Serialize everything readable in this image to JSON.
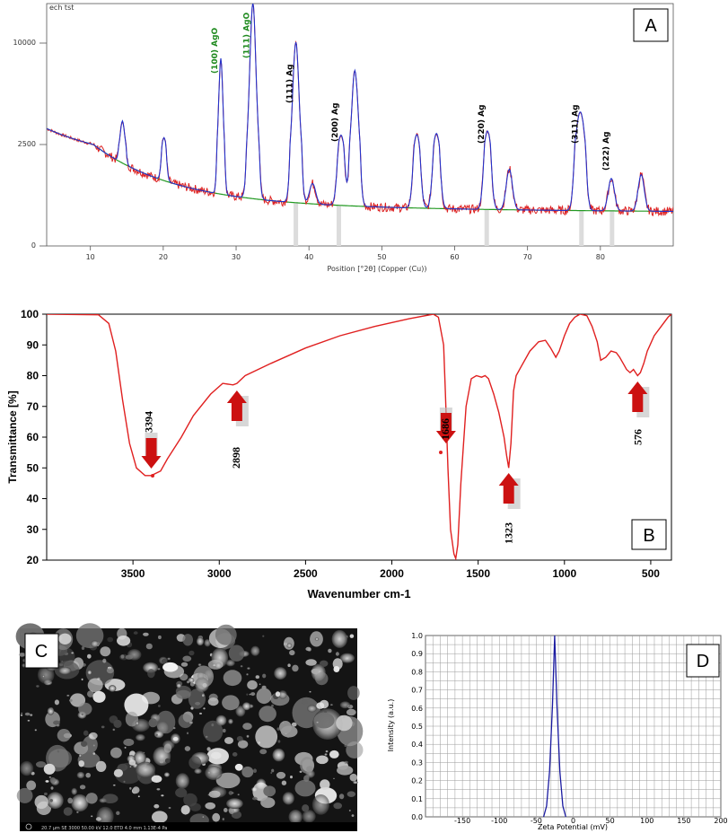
{
  "colors": {
    "xrd_fit": "#2233cc",
    "xrd_raw": "#dd2222",
    "xrd_background": "#229922",
    "ftir_line": "#e02020",
    "arrow": "#cc1111",
    "zeta_line": "#1a1aa0",
    "grid": "#999999"
  },
  "chart_data": [
    {
      "panel": "A",
      "type": "line",
      "header": "ech tst",
      "xlabel": "Position [°2θ] (Copper (Cu))",
      "ylabel": "",
      "xlim": [
        4,
        90
      ],
      "ylim": [
        0,
        12000
      ],
      "xticks": [
        10,
        20,
        30,
        40,
        50,
        60,
        70,
        80
      ],
      "yticks": [
        0,
        2500,
        10000
      ],
      "peaks": [
        {
          "x": 14.4,
          "y": 2200
        },
        {
          "x": 20.1,
          "y": 1400
        },
        {
          "x": 27.9,
          "y": 7600
        },
        {
          "x": 32.3,
          "y": 11800
        },
        {
          "x": 38.2,
          "y": 9000
        },
        {
          "x": 40.5,
          "y": 500
        },
        {
          "x": 44.4,
          "y": 2200
        },
        {
          "x": 46.3,
          "y": 7000
        },
        {
          "x": 54.8,
          "y": 2300
        },
        {
          "x": 57.5,
          "y": 2400
        },
        {
          "x": 64.5,
          "y": 2600
        },
        {
          "x": 67.5,
          "y": 1000
        },
        {
          "x": 76.9,
          "y": 2400
        },
        {
          "x": 77.5,
          "y": 2800
        },
        {
          "x": 81.5,
          "y": 800
        },
        {
          "x": 85.6,
          "y": 900
        }
      ],
      "reference_lines": [
        38.2,
        44.1,
        64.4,
        77.4,
        81.6
      ],
      "annotations": [
        {
          "label": "(100) AgO",
          "x": 27.9,
          "color": "green"
        },
        {
          "label": "(111) AgO",
          "x": 32.3,
          "color": "green"
        },
        {
          "label": "(111) Ag",
          "x": 38.2,
          "color": "black"
        },
        {
          "label": "(200) Ag",
          "x": 44.4,
          "color": "black"
        },
        {
          "label": "(220) Ag",
          "x": 64.5,
          "color": "black"
        },
        {
          "label": "(311) Ag",
          "x": 77.4,
          "color": "black"
        },
        {
          "label": "(222) Ag",
          "x": 81.6,
          "color": "black"
        }
      ],
      "grid": false
    },
    {
      "panel": "B",
      "type": "line",
      "xlabel": "Wavenumber cm-1",
      "ylabel": "Transmittance [%]",
      "xlim": [
        4000,
        380
      ],
      "ylim": [
        20,
        100
      ],
      "xticks": [
        3500,
        3000,
        2500,
        2000,
        1500,
        1000,
        500
      ],
      "yticks": [
        20,
        30,
        40,
        50,
        60,
        70,
        80,
        90,
        100
      ],
      "points": [
        [
          4000,
          100
        ],
        [
          3700,
          99.8
        ],
        [
          3640,
          97
        ],
        [
          3600,
          88
        ],
        [
          3560,
          72
        ],
        [
          3520,
          58
        ],
        [
          3480,
          50
        ],
        [
          3430,
          47.5
        ],
        [
          3394,
          47.5
        ],
        [
          3340,
          49
        ],
        [
          3300,
          53
        ],
        [
          3220,
          60
        ],
        [
          3150,
          67
        ],
        [
          3050,
          74
        ],
        [
          2980,
          77.5
        ],
        [
          2920,
          77
        ],
        [
          2898,
          77.5
        ],
        [
          2850,
          80
        ],
        [
          2700,
          84
        ],
        [
          2500,
          89
        ],
        [
          2300,
          93
        ],
        [
          2100,
          96
        ],
        [
          1900,
          98.5
        ],
        [
          1760,
          100
        ],
        [
          1730,
          99
        ],
        [
          1700,
          90
        ],
        [
          1690,
          75
        ],
        [
          1675,
          50
        ],
        [
          1660,
          30
        ],
        [
          1640,
          22
        ],
        [
          1630,
          20.5
        ],
        [
          1618,
          25
        ],
        [
          1600,
          45
        ],
        [
          1570,
          70
        ],
        [
          1540,
          79
        ],
        [
          1510,
          80
        ],
        [
          1480,
          79.5
        ],
        [
          1460,
          80
        ],
        [
          1440,
          79
        ],
        [
          1410,
          74
        ],
        [
          1380,
          68
        ],
        [
          1350,
          60
        ],
        [
          1335,
          54
        ],
        [
          1323,
          50
        ],
        [
          1310,
          58
        ],
        [
          1295,
          75
        ],
        [
          1280,
          80
        ],
        [
          1250,
          83
        ],
        [
          1200,
          88
        ],
        [
          1150,
          91
        ],
        [
          1110,
          91.5
        ],
        [
          1080,
          89
        ],
        [
          1050,
          86
        ],
        [
          1030,
          88
        ],
        [
          1000,
          93
        ],
        [
          970,
          97
        ],
        [
          940,
          99
        ],
        [
          910,
          100
        ],
        [
          870,
          99.5
        ],
        [
          840,
          96
        ],
        [
          810,
          91
        ],
        [
          790,
          85
        ],
        [
          760,
          86
        ],
        [
          730,
          88
        ],
        [
          700,
          87.5
        ],
        [
          680,
          86
        ],
        [
          660,
          84
        ],
        [
          640,
          82
        ],
        [
          620,
          81
        ],
        [
          600,
          82
        ],
        [
          576,
          80
        ],
        [
          560,
          81
        ],
        [
          540,
          84
        ],
        [
          520,
          88
        ],
        [
          480,
          93
        ],
        [
          440,
          96
        ],
        [
          400,
          99
        ],
        [
          380,
          100
        ]
      ],
      "annotations": [
        {
          "label": "3394",
          "x": 3394,
          "arrow": "down"
        },
        {
          "label": "2898",
          "x": 2898,
          "arrow": "up"
        },
        {
          "label": "1686",
          "x": 1686,
          "arrow": "down"
        },
        {
          "label": "1323",
          "x": 1323,
          "arrow": "up"
        },
        {
          "label": "576",
          "x": 576,
          "arrow": "up"
        }
      ],
      "grid": false
    },
    {
      "panel": "D",
      "type": "line",
      "xlabel": "Zeta Potential (mV)",
      "ylabel": "Intensity (a.u.)",
      "xlim": [
        -200,
        200
      ],
      "ylim": [
        0,
        1
      ],
      "xticks": [
        -150,
        -100,
        -50,
        0,
        50,
        100,
        150,
        200
      ],
      "yticks": [
        0.0,
        0.1,
        0.2,
        0.3,
        0.4,
        0.5,
        0.6,
        0.7,
        0.8,
        0.9,
        1.0
      ],
      "points": [
        [
          -40,
          0
        ],
        [
          -36,
          0.06
        ],
        [
          -32,
          0.25
        ],
        [
          -28,
          0.62
        ],
        [
          -25,
          1.0
        ],
        [
          -22,
          0.62
        ],
        [
          -18,
          0.25
        ],
        [
          -14,
          0.06
        ],
        [
          -10,
          0
        ]
      ],
      "grid": true
    }
  ],
  "panel_a": {
    "letter": "A",
    "header": "ech tst",
    "xlabel": "Position [°2θ] (Copper (Cu))",
    "yt0": "0",
    "yt1": "2500",
    "yt2": "10000",
    "xt": [
      "10",
      "20",
      "30",
      "40",
      "50",
      "60",
      "70",
      "80"
    ],
    "ann": [
      "(100) AgO",
      "(111) AgO",
      "(111) Ag",
      "(200) Ag",
      "(220) Ag",
      "(311) Ag",
      "(222) Ag"
    ]
  },
  "panel_b": {
    "letter": "B",
    "xlabel": "Wavenumber cm-1",
    "ylabel": "Transmittance [%]",
    "xt": [
      "3500",
      "3000",
      "2500",
      "2000",
      "1500",
      "1000",
      "500"
    ],
    "yt": [
      "20",
      "30",
      "40",
      "50",
      "60",
      "70",
      "80",
      "90",
      "100"
    ],
    "ann": [
      "3394",
      "2898",
      "1686",
      "1323",
      "576"
    ]
  },
  "panel_c": {
    "letter": "C",
    "footer": "20.7 μm  SE 3000  50.00 kV  12.0 ETD  4.0 mm  1.13E-4 Pa"
  },
  "panel_d": {
    "letter": "D",
    "xlabel": "Zeta Potential (mV)",
    "ylabel": "Intensity (a.u.)",
    "xt": [
      "-150",
      "-100",
      "-50",
      "0",
      "50",
      "100",
      "150",
      "200"
    ],
    "yt": [
      "0.0",
      "0.1",
      "0.2",
      "0.3",
      "0.4",
      "0.5",
      "0.6",
      "0.7",
      "0.8",
      "0.9",
      "1.0"
    ]
  }
}
